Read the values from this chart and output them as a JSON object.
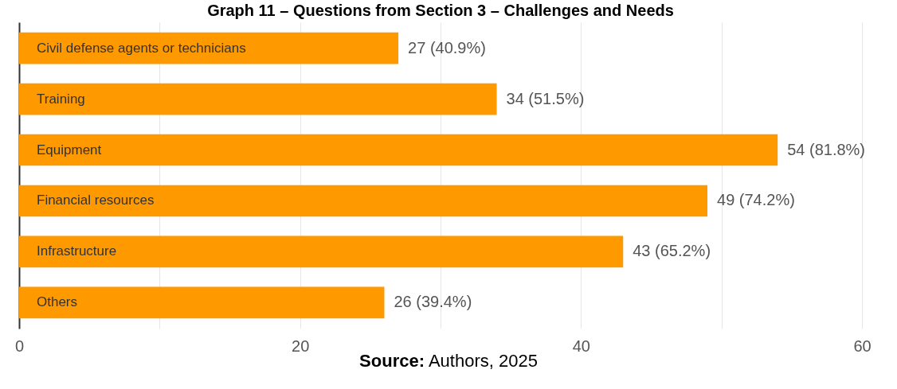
{
  "chart_data": {
    "type": "bar",
    "orientation": "horizontal",
    "title": "Graph 11 – Questions from Section 3 – Challenges and Needs",
    "categories": [
      "Civil defense agents or technicians",
      "Training",
      "Equipment",
      "Financial resources",
      "Infrastructure",
      "Others"
    ],
    "values": [
      27,
      34,
      54,
      49,
      43,
      26
    ],
    "value_labels": [
      "27 (40.9%)",
      "34 (51.5%)",
      "54 (81.8%)",
      "49 (74.2%)",
      "43 (65.2%)",
      "26 (39.4%)"
    ],
    "color": "#ff9900",
    "xlim": [
      0,
      60
    ],
    "xticks": [
      0,
      {
        "value": 10,
        "label": null
      },
      20,
      {
        "value": 30,
        "label": null
      },
      40,
      {
        "value": 50,
        "label": null
      },
      60
    ],
    "grid": "x",
    "annotations": [
      "Source: Authors, 2025"
    ]
  }
}
